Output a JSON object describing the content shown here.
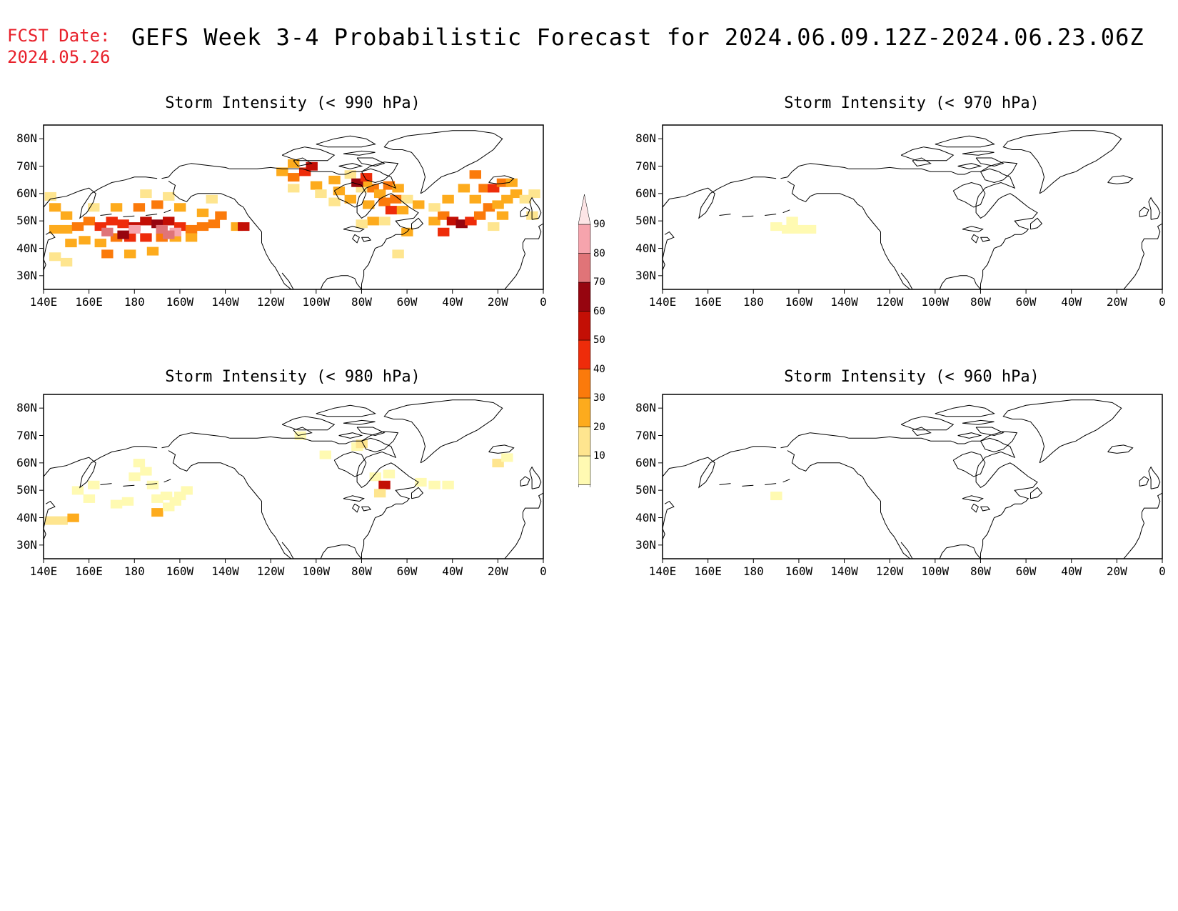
{
  "header": {
    "fcst_label": "FCST Date:",
    "fcst_date": "2024.05.26",
    "title": "GEFS Week 3-4 Probabilistic Forecast for 2024.06.09.12Z-2024.06.23.06Z"
  },
  "colors": {
    "header_red": "#e8202a",
    "coast": "#000000"
  },
  "axes": {
    "lat_labels": [
      "80N",
      "70N",
      "60N",
      "50N",
      "40N",
      "30N"
    ],
    "lon_labels": [
      "140E",
      "160E",
      "180",
      "160W",
      "140W",
      "120W",
      "100W",
      "80W",
      "60W",
      "40W",
      "20W",
      "0"
    ],
    "lon_range_deg_east": [
      140,
      360
    ],
    "lat_range": [
      25,
      85
    ]
  },
  "colorbar": {
    "labels": [
      "90",
      "80",
      "70",
      "60",
      "50",
      "40",
      "30",
      "20",
      "10"
    ],
    "levels": [
      10,
      20,
      30,
      40,
      50,
      60,
      70,
      80,
      90
    ],
    "colors": [
      "#fffab2",
      "#fee58f",
      "#fdab1d",
      "#fb7a0b",
      "#ee2c0a",
      "#c30f05",
      "#96050f",
      "#e07478",
      "#f6a4ad",
      "#fde5e6"
    ]
  },
  "panels": [
    {
      "title": "Storm Intensity (< 990 hPa)",
      "cells": [
        [
          145,
          47,
          3
        ],
        [
          150,
          47,
          3
        ],
        [
          155,
          48,
          4
        ],
        [
          160,
          50,
          4
        ],
        [
          165,
          48,
          5
        ],
        [
          170,
          50,
          5
        ],
        [
          175,
          49,
          5
        ],
        [
          180,
          48,
          6
        ],
        [
          185,
          50,
          6
        ],
        [
          190,
          49,
          7
        ],
        [
          195,
          50,
          6
        ],
        [
          200,
          48,
          5
        ],
        [
          205,
          47,
          4
        ],
        [
          210,
          48,
          4
        ],
        [
          215,
          49,
          4
        ],
        [
          152,
          42,
          3
        ],
        [
          158,
          43,
          3
        ],
        [
          165,
          42,
          3
        ],
        [
          172,
          44,
          4
        ],
        [
          178,
          44,
          5
        ],
        [
          185,
          44,
          5
        ],
        [
          192,
          44,
          4
        ],
        [
          198,
          44,
          3
        ],
        [
          205,
          44,
          3
        ],
        [
          168,
          38,
          4
        ],
        [
          178,
          38,
          3
        ],
        [
          188,
          39,
          3
        ],
        [
          145,
          37,
          2
        ],
        [
          150,
          35,
          2
        ],
        [
          162,
          55,
          2
        ],
        [
          172,
          55,
          3
        ],
        [
          182,
          55,
          4
        ],
        [
          190,
          56,
          4
        ],
        [
          200,
          55,
          3
        ],
        [
          210,
          53,
          3
        ],
        [
          218,
          52,
          4
        ],
        [
          225,
          48,
          3
        ],
        [
          145,
          55,
          3
        ],
        [
          150,
          52,
          3
        ],
        [
          143,
          59,
          2
        ],
        [
          185,
          60,
          2
        ],
        [
          195,
          59,
          2
        ],
        [
          214,
          58,
          2
        ],
        [
          228,
          48,
          6
        ],
        [
          168,
          46,
          8
        ],
        [
          180,
          47,
          9
        ],
        [
          192,
          47,
          8
        ],
        [
          198,
          46,
          9
        ],
        [
          175,
          45,
          7
        ],
        [
          195,
          45,
          8
        ],
        [
          245,
          68,
          3
        ],
        [
          250,
          66,
          4
        ],
        [
          255,
          68,
          5
        ],
        [
          260,
          63,
          3
        ],
        [
          262,
          60,
          2
        ],
        [
          250,
          62,
          2
        ],
        [
          268,
          57,
          2
        ],
        [
          270,
          61,
          3
        ],
        [
          275,
          58,
          3
        ],
        [
          280,
          62,
          2
        ],
        [
          283,
          56,
          3
        ],
        [
          285,
          62,
          4
        ],
        [
          288,
          60,
          3
        ],
        [
          290,
          57,
          4
        ],
        [
          293,
          54,
          5
        ],
        [
          295,
          58,
          4
        ],
        [
          298,
          54,
          3
        ],
        [
          290,
          50,
          2
        ],
        [
          285,
          50,
          3
        ],
        [
          280,
          49,
          2
        ],
        [
          268,
          65,
          3
        ],
        [
          275,
          67,
          2
        ],
        [
          282,
          64,
          3
        ],
        [
          292,
          63,
          4
        ],
        [
          296,
          62,
          3
        ],
        [
          300,
          58,
          2
        ],
        [
          305,
          56,
          3
        ],
        [
          312,
          50,
          3
        ],
        [
          316,
          52,
          4
        ],
        [
          320,
          50,
          6
        ],
        [
          324,
          49,
          7
        ],
        [
          328,
          50,
          5
        ],
        [
          332,
          52,
          4
        ],
        [
          336,
          55,
          4
        ],
        [
          340,
          56,
          3
        ],
        [
          344,
          58,
          3
        ],
        [
          348,
          60,
          3
        ],
        [
          352,
          58,
          2
        ],
        [
          356,
          60,
          2
        ],
        [
          330,
          58,
          3
        ],
        [
          334,
          62,
          4
        ],
        [
          338,
          62,
          5
        ],
        [
          342,
          64,
          4
        ],
        [
          346,
          64,
          3
        ],
        [
          330,
          67,
          4
        ],
        [
          325,
          62,
          3
        ],
        [
          318,
          58,
          3
        ],
        [
          312,
          55,
          2
        ],
        [
          342,
          52,
          3
        ],
        [
          338,
          48,
          2
        ],
        [
          355,
          52,
          2
        ],
        [
          300,
          46,
          3
        ],
        [
          296,
          38,
          2
        ],
        [
          258,
          70,
          6
        ],
        [
          250,
          71,
          3
        ],
        [
          278,
          64,
          7
        ],
        [
          316,
          46,
          5
        ],
        [
          282,
          66,
          5
        ]
      ]
    },
    {
      "title": "Storm Intensity (< 970 hPa)",
      "cells": [
        [
          190,
          48,
          1
        ],
        [
          195,
          47,
          1
        ],
        [
          200,
          47,
          1
        ],
        [
          205,
          47,
          1
        ],
        [
          197,
          50,
          1
        ]
      ]
    },
    {
      "title": "Storm Intensity (< 980 hPa)",
      "cells": [
        [
          143,
          39,
          2
        ],
        [
          148,
          39,
          2
        ],
        [
          153,
          40,
          3
        ],
        [
          155,
          50,
          1
        ],
        [
          160,
          47,
          1
        ],
        [
          162,
          52,
          1
        ],
        [
          172,
          45,
          1
        ],
        [
          177,
          46,
          1
        ],
        [
          180,
          55,
          1
        ],
        [
          182,
          60,
          1
        ],
        [
          185,
          57,
          1
        ],
        [
          188,
          52,
          1
        ],
        [
          190,
          47,
          1
        ],
        [
          194,
          48,
          1
        ],
        [
          198,
          46,
          1
        ],
        [
          200,
          48,
          1
        ],
        [
          203,
          50,
          1
        ],
        [
          190,
          42,
          3
        ],
        [
          195,
          44,
          1
        ],
        [
          253,
          70,
          1
        ],
        [
          264,
          63,
          1
        ],
        [
          278,
          66,
          1
        ],
        [
          280,
          67,
          2
        ],
        [
          286,
          55,
          1
        ],
        [
          290,
          52,
          6
        ],
        [
          288,
          49,
          2
        ],
        [
          292,
          56,
          1
        ],
        [
          306,
          53,
          1
        ],
        [
          312,
          52,
          1
        ],
        [
          318,
          52,
          1
        ],
        [
          340,
          60,
          2
        ],
        [
          344,
          62,
          1
        ]
      ]
    },
    {
      "title": "Storm Intensity (< 960 hPa)",
      "cells": [
        [
          190,
          48,
          1
        ]
      ]
    }
  ]
}
